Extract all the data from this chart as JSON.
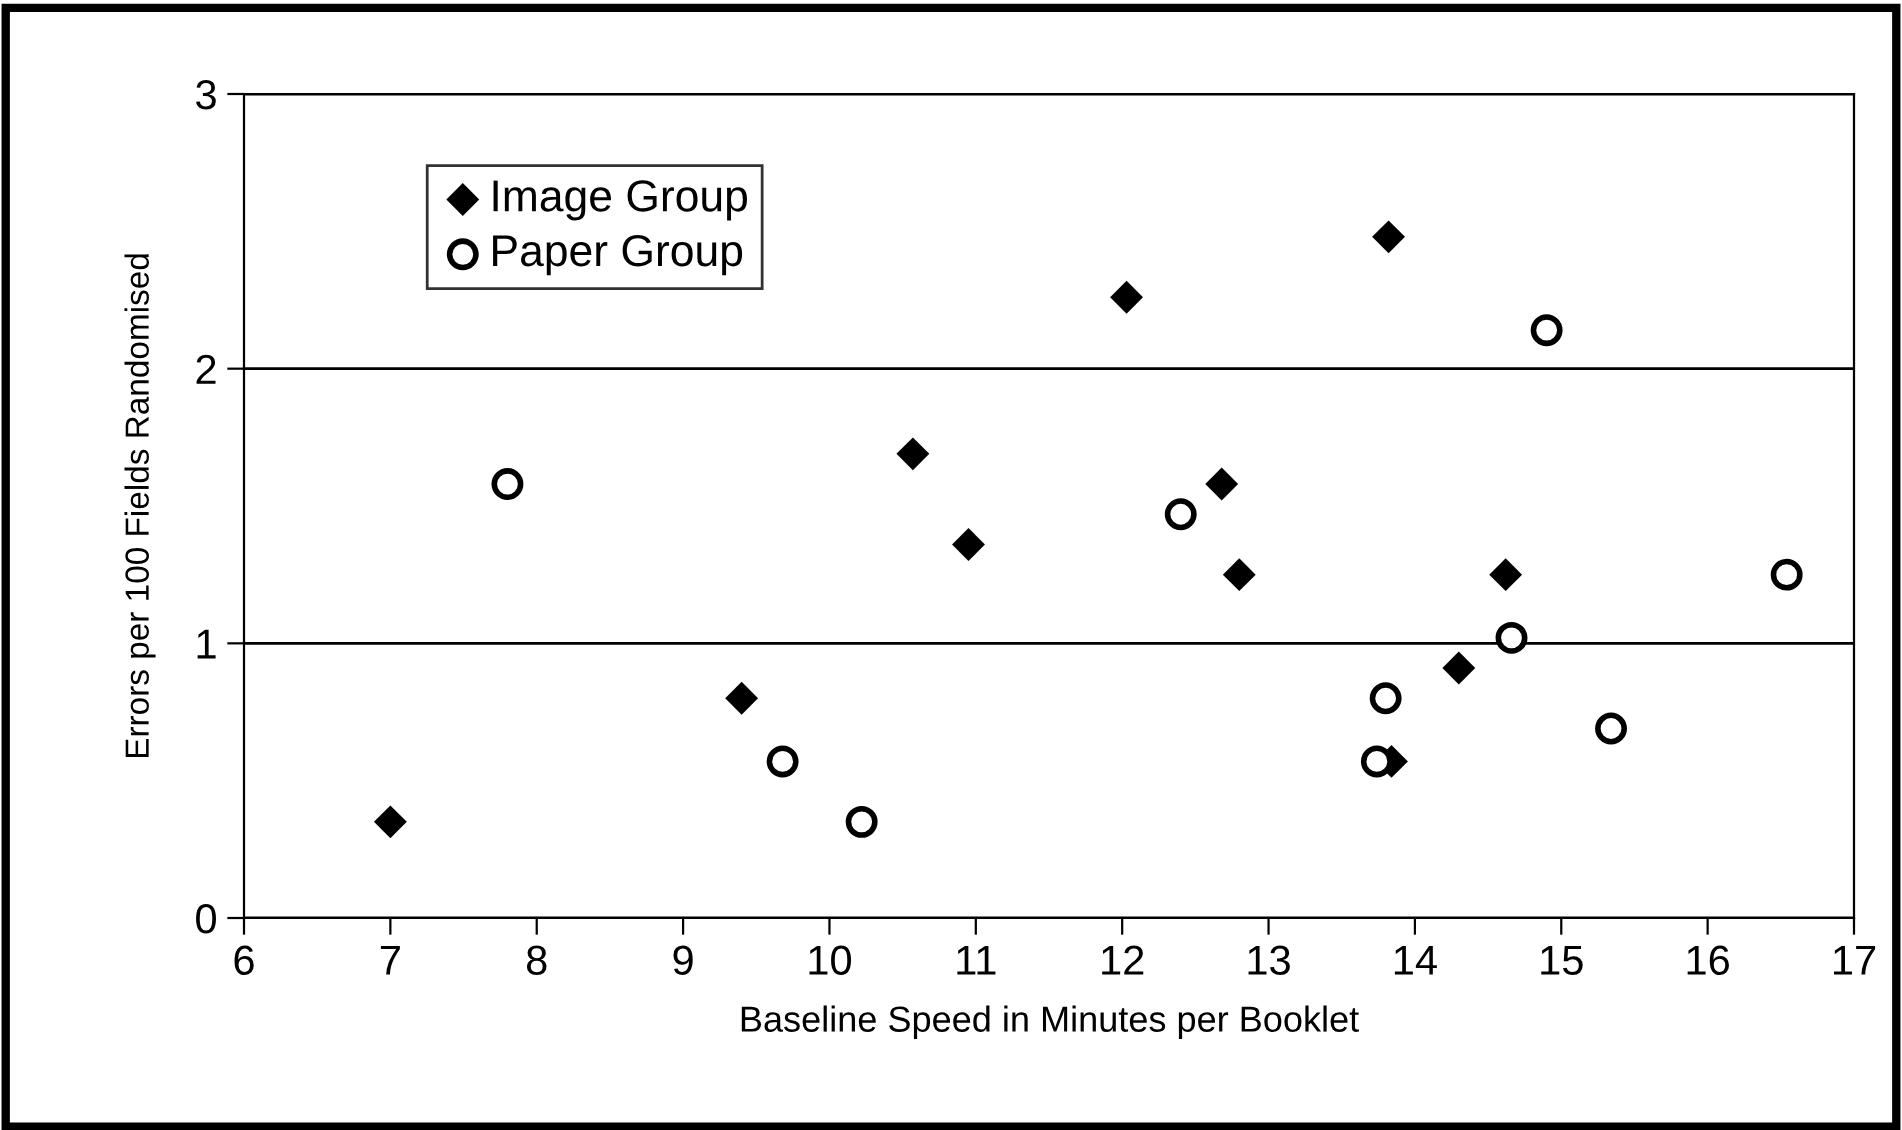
{
  "chart_data": {
    "type": "scatter",
    "xlabel": "Baseline Speed in Minutes per Booklet",
    "ylabel": "Errors per 100 Fields Randomised",
    "series": [
      {
        "name": "Image Group",
        "color": "#000000",
        "marker": "diamond",
        "x": [
          7.0,
          9.4,
          10.57,
          10.95,
          12.03,
          12.68,
          12.8,
          13.82,
          13.84,
          14.3,
          14.62
        ],
        "values": [
          0.35,
          0.8,
          1.69,
          1.36,
          2.26,
          1.58,
          1.25,
          2.48,
          0.57,
          0.91,
          1.25
        ]
      },
      {
        "name": "Paper Group",
        "color": "#000000",
        "marker": "circle",
        "x": [
          7.8,
          9.68,
          10.22,
          12.4,
          13.74,
          13.8,
          14.66,
          14.9,
          15.34,
          16.54
        ],
        "values": [
          1.58,
          0.57,
          0.35,
          1.47,
          0.57,
          0.8,
          1.02,
          2.14,
          0.69,
          1.25
        ]
      }
    ],
    "xlim": [
      6,
      17
    ],
    "xticks": [
      6,
      7,
      8,
      9,
      10,
      11,
      12,
      13,
      14,
      15,
      16,
      17
    ],
    "ylim": [
      0,
      3
    ],
    "yticks": [
      0,
      1,
      2,
      3
    ],
    "grid": "y",
    "legend": "top left"
  }
}
